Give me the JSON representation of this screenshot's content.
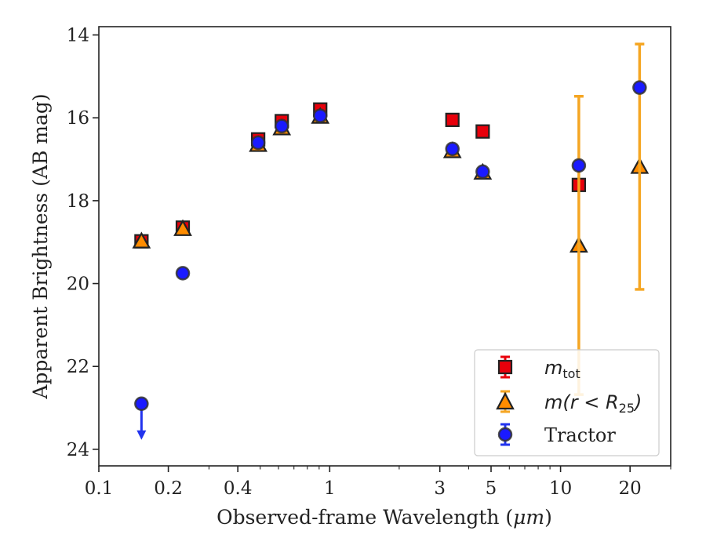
{
  "chart_data": {
    "type": "scatter",
    "title": "",
    "xlabel_prefix": "Observed-frame Wavelength (",
    "xlabel_unit": "μm",
    "xlabel_suffix": ")",
    "ylabel": "Apparent Brightness (AB mag)",
    "x_scale": "log",
    "xlim": [
      0.1,
      30
    ],
    "ylim": [
      24.4,
      13.8
    ],
    "y_inverted": true,
    "x_ticks": [
      0.1,
      0.2,
      0.4,
      1,
      3,
      5,
      10,
      20
    ],
    "x_tick_labels": [
      "0.1",
      "0.2",
      "0.4",
      "1",
      "3",
      "5",
      "10",
      "20"
    ],
    "y_ticks": [
      14,
      16,
      18,
      20,
      22,
      24
    ],
    "y_tick_labels": [
      "14",
      "16",
      "18",
      "20",
      "22",
      "24"
    ],
    "legend_position": "lower-right",
    "series": [
      {
        "name": "m_tot",
        "marker": "square",
        "color": "#e8000b",
        "edge": "#222222",
        "errcolor": "#e8000b",
        "points": [
          {
            "x": 0.153,
            "y": 18.98
          },
          {
            "x": 0.231,
            "y": 18.65
          },
          {
            "x": 0.49,
            "y": 16.52
          },
          {
            "x": 0.62,
            "y": 16.08
          },
          {
            "x": 0.91,
            "y": 15.8
          },
          {
            "x": 3.4,
            "y": 16.05
          },
          {
            "x": 4.6,
            "y": 16.33
          },
          {
            "x": 12.0,
            "y": 17.62
          }
        ]
      },
      {
        "name": "m(r<R25)",
        "marker": "triangle",
        "color": "#ff8c00",
        "edge": "#222222",
        "errcolor": "#f5a623",
        "points": [
          {
            "x": 0.153,
            "y": 18.98
          },
          {
            "x": 0.231,
            "y": 18.68
          },
          {
            "x": 0.49,
            "y": 16.65
          },
          {
            "x": 0.62,
            "y": 16.25
          },
          {
            "x": 0.91,
            "y": 15.97
          },
          {
            "x": 3.4,
            "y": 16.8
          },
          {
            "x": 4.6,
            "y": 17.32
          },
          {
            "x": 12.0,
            "y": 19.08,
            "err_lo": 3.6,
            "err_hi": 3.6
          },
          {
            "x": 22.0,
            "y": 17.18,
            "err_lo": 2.96,
            "err_hi": 2.96
          }
        ]
      },
      {
        "name": "Tractor",
        "marker": "circle",
        "color": "#1a1aff",
        "edge": "#333333",
        "errcolor": "#2233ee",
        "points": [
          {
            "x": 0.153,
            "y": 22.9,
            "upper_limit": true
          },
          {
            "x": 0.231,
            "y": 19.75
          },
          {
            "x": 0.49,
            "y": 16.6
          },
          {
            "x": 0.62,
            "y": 16.2
          },
          {
            "x": 0.91,
            "y": 15.95
          },
          {
            "x": 3.4,
            "y": 16.75
          },
          {
            "x": 4.6,
            "y": 17.3
          },
          {
            "x": 12.0,
            "y": 17.15
          },
          {
            "x": 22.0,
            "y": 15.27
          }
        ]
      }
    ]
  },
  "legend": {
    "mtot_main": "m",
    "mtot_sub": "tot",
    "mr_main": "m(r < R",
    "mr_sub": "25",
    "mr_close": ")",
    "tractor": "Tractor"
  }
}
